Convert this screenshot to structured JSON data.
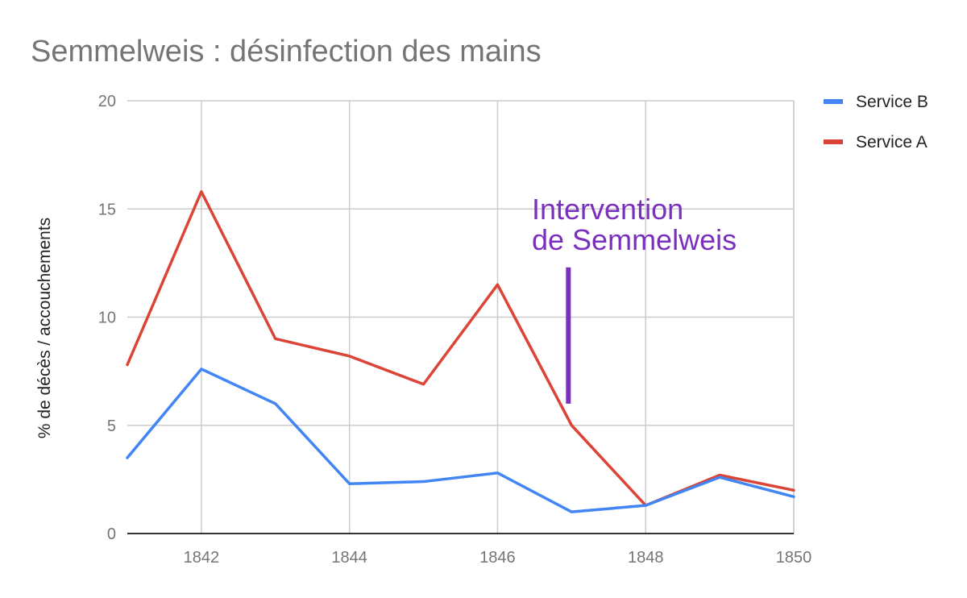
{
  "chart_data": {
    "type": "line",
    "title": "Semmelweis : désinfection des mains",
    "ylabel": "% de décès / accouchements",
    "xlabel": "",
    "xlim": [
      1841,
      1850
    ],
    "ylim": [
      0,
      20
    ],
    "x_ticks": [
      1842,
      1844,
      1846,
      1848,
      1850
    ],
    "y_ticks": [
      0,
      5,
      10,
      15,
      20
    ],
    "grid": true,
    "legend_position": "right",
    "x": [
      1841,
      1842,
      1843,
      1844,
      1845,
      1846,
      1847,
      1848,
      1849,
      1850
    ],
    "series": [
      {
        "name": "Service B",
        "color": "#4285f4",
        "values": [
          3.5,
          7.6,
          6.0,
          2.3,
          2.4,
          2.8,
          1.0,
          1.3,
          2.6,
          1.7
        ]
      },
      {
        "name": "Service A",
        "color": "#db4437",
        "values": [
          7.8,
          15.8,
          9.0,
          8.2,
          6.9,
          11.5,
          5.0,
          1.3,
          2.7,
          2.0
        ]
      }
    ],
    "annotation": {
      "lines": [
        "Intervention",
        "de Semmelweis"
      ],
      "color": "#7b2fbe",
      "marker_x": 1847,
      "marker_y_range": [
        6.0,
        12.3
      ]
    }
  }
}
